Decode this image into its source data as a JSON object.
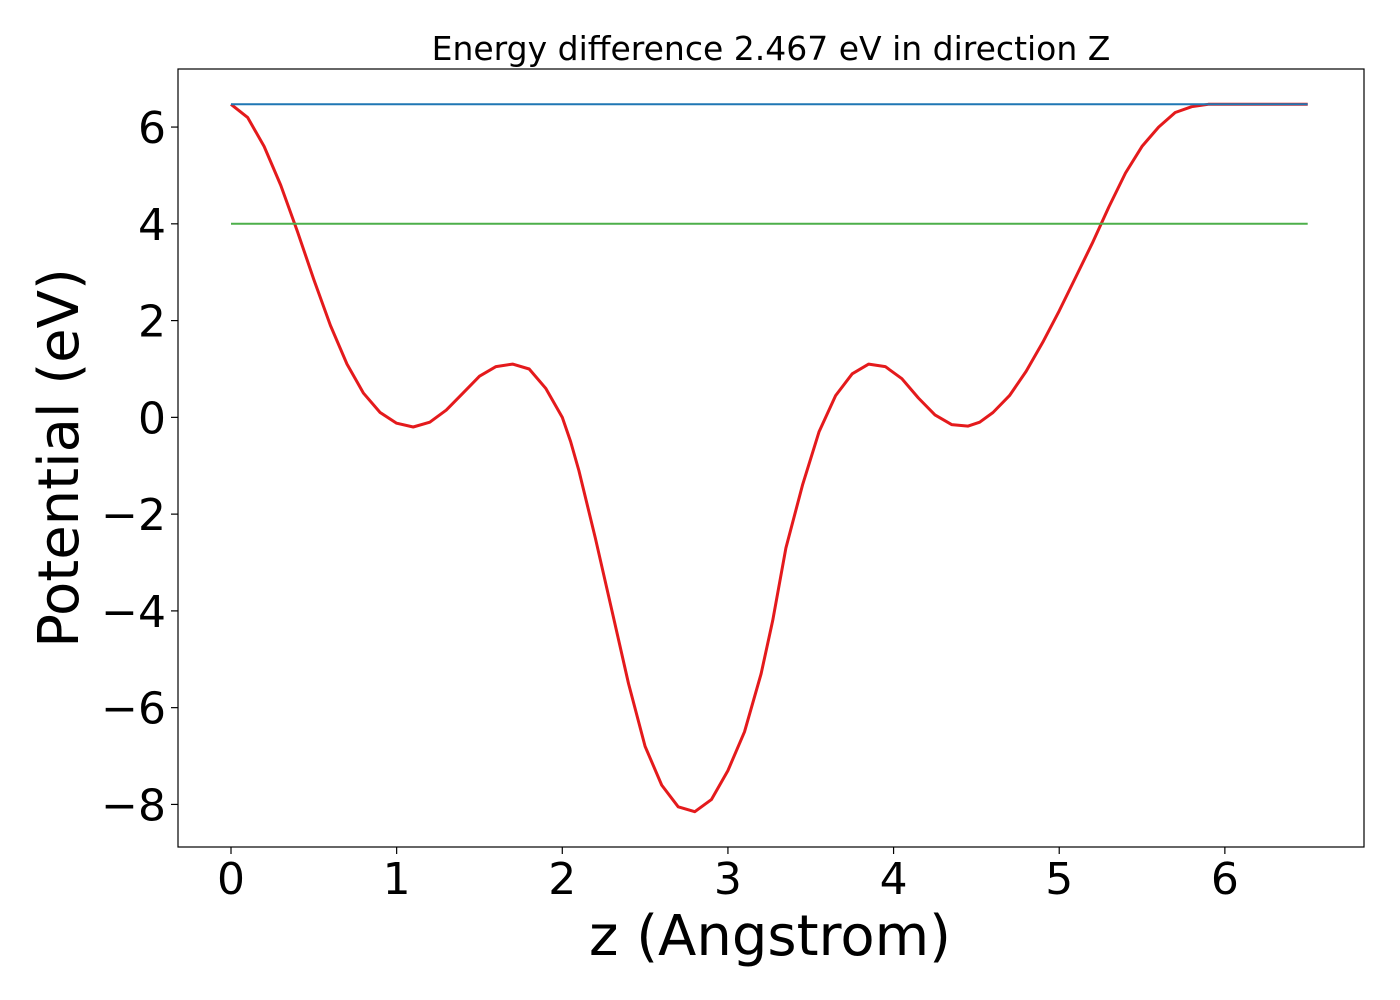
{
  "chart_data": {
    "type": "line",
    "title": "Energy difference 2.467 eV in direction Z",
    "xlabel": "z (Angstrom)",
    "ylabel": "Potential (eV)",
    "xlim": [
      -0.32,
      6.84
    ],
    "ylim": [
      -8.88,
      7.2
    ],
    "xticks": [
      0,
      1,
      2,
      3,
      4,
      5,
      6
    ],
    "yticks": [
      -8,
      -6,
      -4,
      -2,
      0,
      2,
      4,
      6
    ],
    "xtick_labels": [
      "0",
      "1",
      "2",
      "3",
      "4",
      "5",
      "6"
    ],
    "ytick_labels": [
      "−8",
      "−6",
      "−4",
      "−2",
      "0",
      "2",
      "4",
      "6"
    ],
    "grid": false,
    "legend": "none",
    "series": [
      {
        "color": "#e41a1c",
        "x": [
          0.0,
          0.1,
          0.2,
          0.3,
          0.4,
          0.5,
          0.6,
          0.7,
          0.8,
          0.9,
          1.0,
          1.1,
          1.2,
          1.3,
          1.4,
          1.5,
          1.6,
          1.7,
          1.8,
          1.9,
          2.0,
          2.05,
          2.1,
          2.2,
          2.3,
          2.4,
          2.5,
          2.6,
          2.7,
          2.8,
          2.9,
          3.0,
          3.1,
          3.2,
          3.27,
          3.35,
          3.45,
          3.55,
          3.65,
          3.75,
          3.85,
          3.95,
          4.05,
          4.15,
          4.25,
          4.35,
          4.45,
          4.52,
          4.6,
          4.7,
          4.8,
          4.9,
          5.0,
          5.1,
          5.2,
          5.3,
          5.4,
          5.5,
          5.6,
          5.7,
          5.8,
          5.9,
          6.0,
          6.1,
          6.2,
          6.3,
          6.4,
          6.5
        ],
        "y": [
          6.47,
          6.2,
          5.6,
          4.8,
          3.85,
          2.85,
          1.9,
          1.1,
          0.5,
          0.1,
          -0.12,
          -0.2,
          -0.1,
          0.15,
          0.5,
          0.85,
          1.05,
          1.1,
          1.0,
          0.6,
          0.0,
          -0.5,
          -1.1,
          -2.5,
          -4.0,
          -5.5,
          -6.8,
          -7.6,
          -8.05,
          -8.15,
          -7.9,
          -7.3,
          -6.5,
          -5.3,
          -4.2,
          -2.7,
          -1.4,
          -0.3,
          0.45,
          0.9,
          1.1,
          1.05,
          0.8,
          0.4,
          0.05,
          -0.15,
          -0.18,
          -0.1,
          0.1,
          0.45,
          0.95,
          1.55,
          2.2,
          2.9,
          3.6,
          4.35,
          5.05,
          5.6,
          6.0,
          6.3,
          6.42,
          6.47,
          6.47,
          6.47,
          6.47,
          6.47,
          6.47,
          6.47
        ]
      },
      {
        "color": "#1f77b4",
        "x": [
          0.0,
          6.5
        ],
        "y": [
          6.47,
          6.47
        ]
      },
      {
        "color": "#4daf4a",
        "x": [
          0.0,
          6.5
        ],
        "y": [
          4.0,
          4.0
        ]
      }
    ]
  }
}
